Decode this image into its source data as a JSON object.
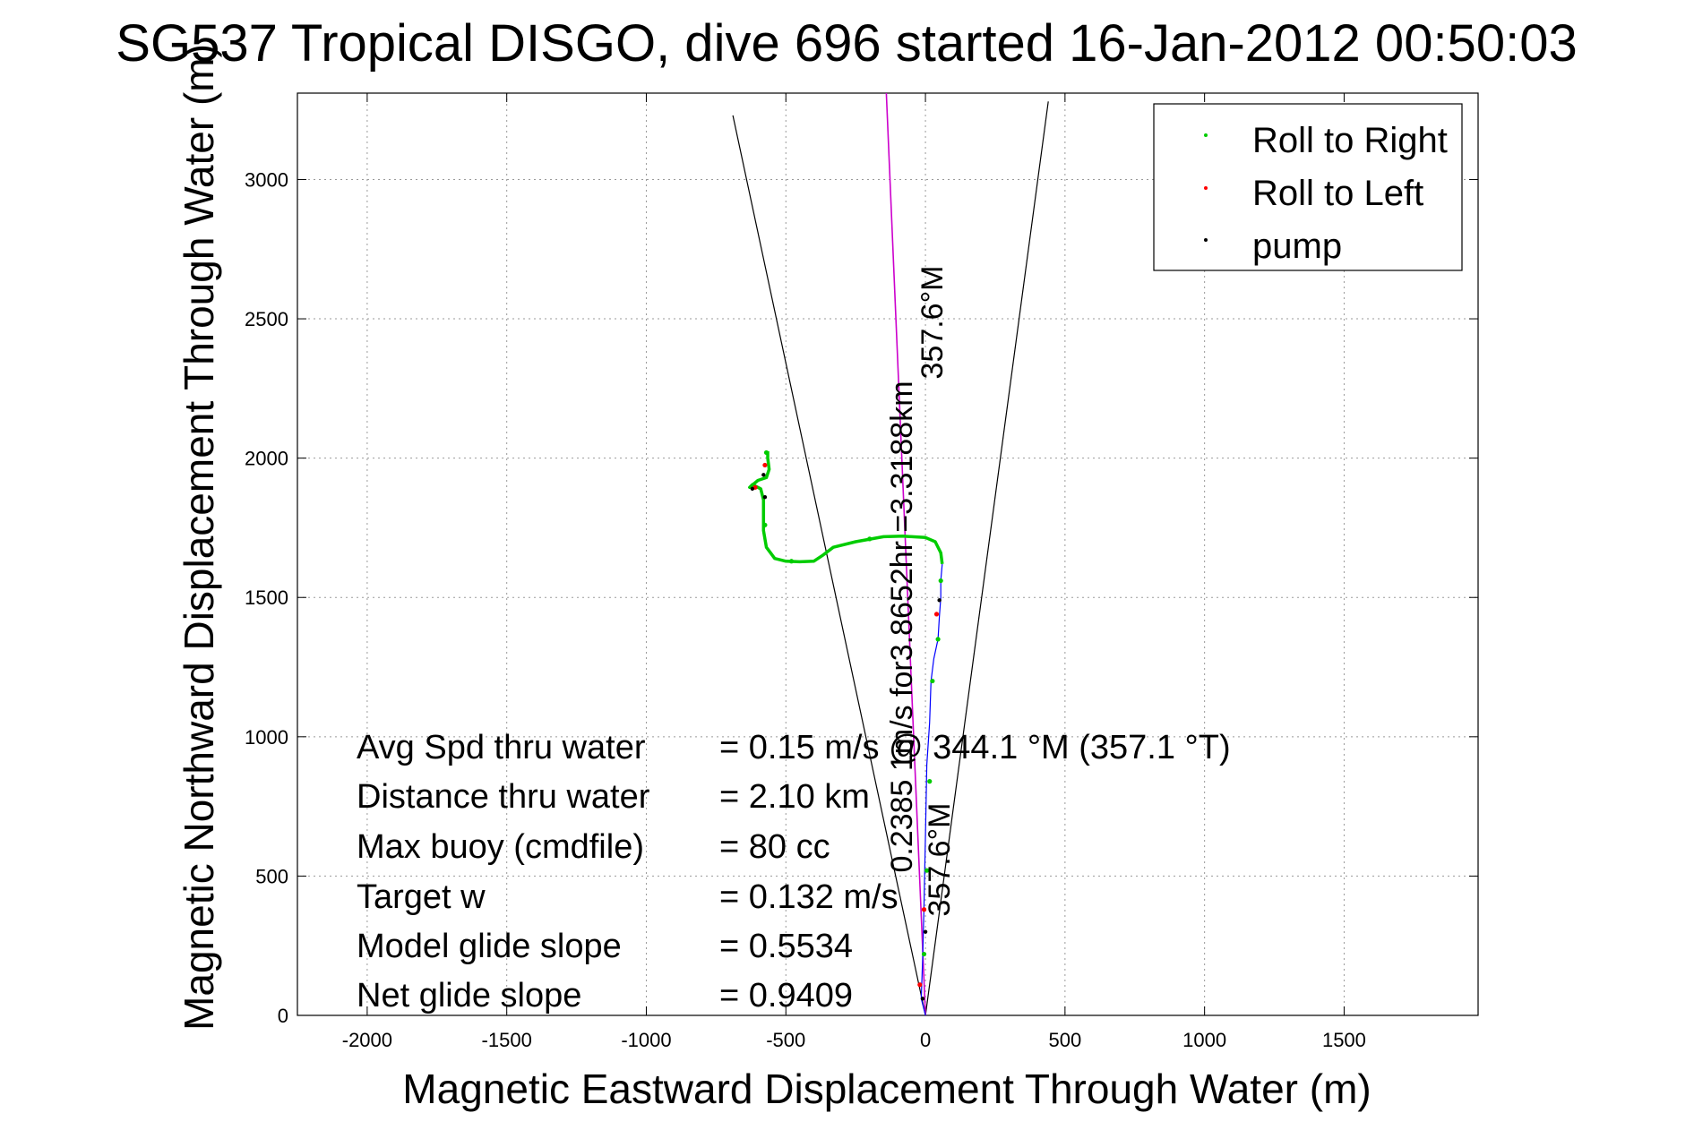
{
  "chart_data": {
    "type": "line",
    "title": "SG537 Tropical DISGO, dive 696 started 16-Jan-2012 00:50:03",
    "xlabel": "Magnetic Eastward Displacement Through Water (m)",
    "ylabel": "Magnetic Northward Displacement Through Water (m)",
    "xlim": [
      -2250,
      1980
    ],
    "ylim": [
      0,
      3310
    ],
    "xticks": [
      -2000,
      -1500,
      -1000,
      -500,
      0,
      500,
      1000,
      1500
    ],
    "yticks": [
      0,
      500,
      1000,
      1500,
      2000,
      2500,
      3000
    ],
    "xtick_labels": [
      "-2000",
      "-1500",
      "-1000",
      "-500",
      "0",
      "500",
      "1000",
      "1500"
    ],
    "ytick_labels": [
      "0",
      "500",
      "1000",
      "1500",
      "2000",
      "2500",
      "3000"
    ],
    "grid": true,
    "legend_position": "top-right",
    "legend": [
      {
        "label": "Roll to Right",
        "color": "#00cc00"
      },
      {
        "label": "Roll to Left",
        "color": "#ff0000"
      },
      {
        "label": "pump",
        "color": "#000000"
      }
    ],
    "cone_lines": [
      {
        "name": "",
        "color": "#000000",
        "points": [
          [
            0,
            0
          ],
          [
            -690,
            3230
          ]
        ]
      },
      {
        "name": "",
        "color": "#000000",
        "points": [
          [
            0,
            0
          ],
          [
            440,
            3280
          ]
        ]
      }
    ],
    "heading_line": {
      "color": "#cc00cc",
      "points": [
        [
          0,
          0
        ],
        [
          -140,
          3310
        ]
      ]
    },
    "track_blue": {
      "color": "#0000ff",
      "points": [
        [
          0,
          0
        ],
        [
          -15,
          60
        ],
        [
          -10,
          200
        ],
        [
          -5,
          400
        ],
        [
          0,
          650
        ],
        [
          5,
          900
        ],
        [
          15,
          1050
        ],
        [
          20,
          1200
        ],
        [
          30,
          1280
        ],
        [
          45,
          1350
        ],
        [
          50,
          1430
        ],
        [
          55,
          1500
        ],
        [
          55,
          1560
        ],
        [
          60,
          1620
        ]
      ]
    },
    "track_green": {
      "color": "#00cc00",
      "points": [
        [
          60,
          1620
        ],
        [
          55,
          1660
        ],
        [
          35,
          1700
        ],
        [
          0,
          1715
        ],
        [
          -80,
          1720
        ],
        [
          -150,
          1718
        ],
        [
          -250,
          1700
        ],
        [
          -330,
          1680
        ],
        [
          -370,
          1650
        ],
        [
          -400,
          1630
        ],
        [
          -450,
          1628
        ],
        [
          -500,
          1630
        ],
        [
          -540,
          1640
        ],
        [
          -570,
          1680
        ],
        [
          -580,
          1740
        ],
        [
          -580,
          1800
        ],
        [
          -580,
          1850
        ],
        [
          -590,
          1890
        ],
        [
          -620,
          1905
        ],
        [
          -630,
          1895
        ],
        [
          -600,
          1920
        ],
        [
          -570,
          1930
        ],
        [
          -560,
          1960
        ],
        [
          -565,
          2000
        ],
        [
          -565,
          2025
        ]
      ]
    },
    "markers_green": [
      [
        -5,
        220
      ],
      [
        5,
        520
      ],
      [
        15,
        840
      ],
      [
        25,
        1200
      ],
      [
        45,
        1350
      ],
      [
        55,
        1560
      ],
      [
        -200,
        1710
      ],
      [
        -480,
        1630
      ],
      [
        -575,
        1760
      ],
      [
        -570,
        2020
      ]
    ],
    "markers_red": [
      [
        -20,
        110
      ],
      [
        40,
        1440
      ],
      [
        -610,
        1895
      ],
      [
        -575,
        1975
      ],
      [
        -5,
        380
      ]
    ],
    "markers_black": [
      [
        -10,
        60
      ],
      [
        50,
        1490
      ],
      [
        -620,
        1890
      ],
      [
        -580,
        1940
      ],
      [
        -575,
        1860
      ],
      [
        0,
        300
      ]
    ],
    "rotated_labels": [
      "357.6°M",
      "0.2385 1m/s for3.8652hr =3.3188km",
      "357.6°M"
    ],
    "annotations": [
      {
        "label": "Avg Spd thru water",
        "value": "=  0.15 m/s @  344.1  °M (357.1 °T)"
      },
      {
        "label": "Distance thru water",
        "value": "=  2.10 km"
      },
      {
        "label": "Max buoy (cmdfile)",
        "value": "= 80 cc"
      },
      {
        "label": "Target w",
        "value": "= 0.132 m/s"
      },
      {
        "label": "Model glide slope",
        "value": "= 0.5534"
      },
      {
        "label": "Net glide slope",
        "value": "= 0.9409"
      }
    ]
  }
}
